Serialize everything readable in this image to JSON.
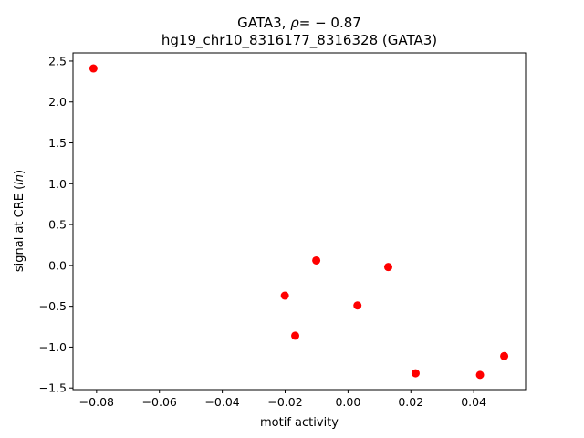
{
  "chart_data": {
    "type": "scatter",
    "title_prefix": "GATA3, ",
    "title_rho": "ρ",
    "title_suffix": "= − 0.87",
    "subtitle": "hg19_chr10_8316177_8316328 (GATA3)",
    "xlabel": "motif activity",
    "ylabel_prefix": "signal at CRE (",
    "ylabel_italic": "ln",
    "ylabel_suffix": ")",
    "xlim": [
      -0.0875,
      0.0565
    ],
    "ylim": [
      -1.52,
      2.6
    ],
    "x_ticks": [
      -0.08,
      -0.06,
      -0.04,
      -0.02,
      0.0,
      0.02,
      0.04
    ],
    "x_tick_labels": [
      "−0.08",
      "−0.06",
      "−0.04",
      "−0.02",
      "0.00",
      "0.02",
      "0.04"
    ],
    "y_ticks": [
      -1.5,
      -1.0,
      -0.5,
      0.0,
      0.5,
      1.0,
      1.5,
      2.0,
      2.5
    ],
    "y_tick_labels": [
      "−1.5",
      "−1.0",
      "−0.5",
      "0.0",
      "0.5",
      "1.0",
      "1.5",
      "2.0",
      "2.5"
    ],
    "marker_color": "#ff0000",
    "grid": false,
    "points": [
      {
        "x": -0.081,
        "y": 2.41
      },
      {
        "x": -0.0101,
        "y": 0.06
      },
      {
        "x": 0.0128,
        "y": -0.02
      },
      {
        "x": -0.0201,
        "y": -0.37
      },
      {
        "x": 0.003,
        "y": -0.49
      },
      {
        "x": -0.0168,
        "y": -0.86
      },
      {
        "x": 0.0497,
        "y": -1.11
      },
      {
        "x": 0.0215,
        "y": -1.32
      },
      {
        "x": 0.042,
        "y": -1.34
      }
    ]
  }
}
